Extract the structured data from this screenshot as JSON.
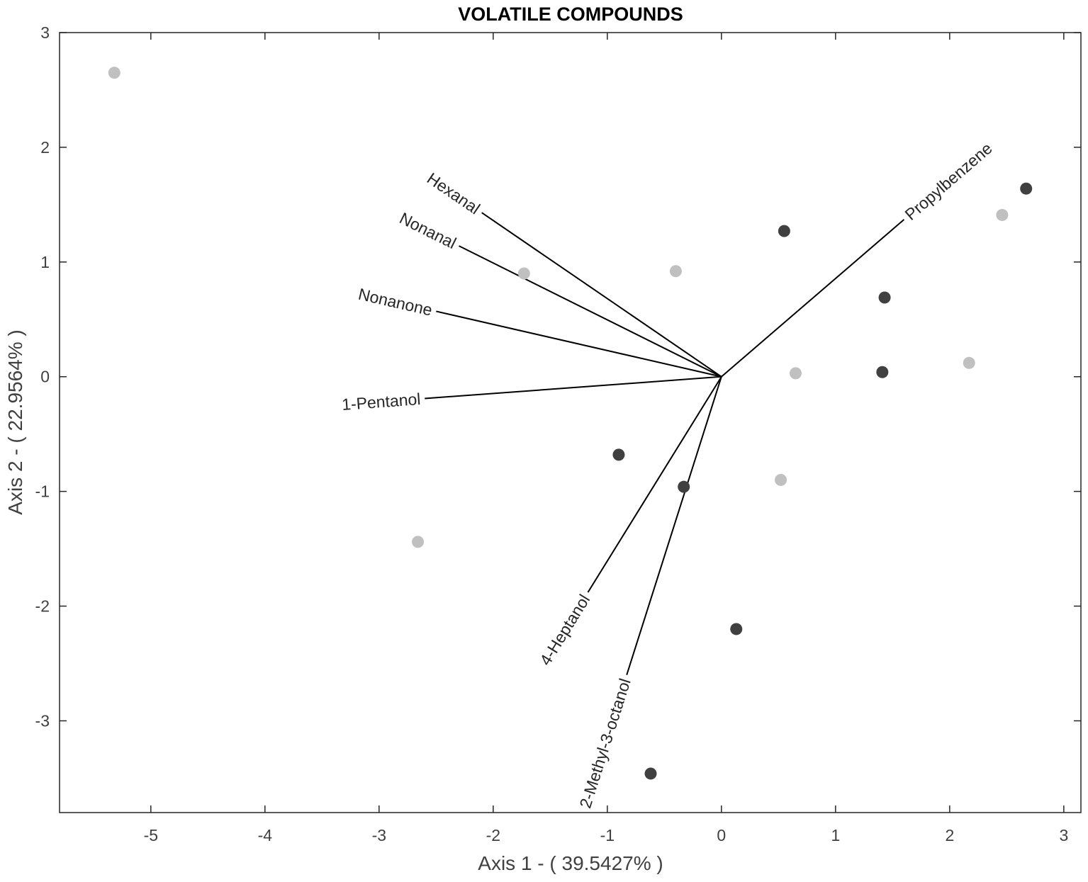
{
  "chart_data": {
    "type": "scatter",
    "title": "VOLATILE COMPOUNDS",
    "xlabel": "Axis 1 - ( 39.5427% )",
    "ylabel": "Axis 2 - ( 22.9564% )",
    "xlim": [
      -5.8,
      3.15
    ],
    "ylim": [
      -3.8,
      3
    ],
    "xticks": [
      -5,
      -4,
      -3,
      -2,
      -1,
      0,
      1,
      2,
      3
    ],
    "yticks": [
      -3,
      -2,
      -1,
      0,
      1,
      2,
      3
    ],
    "grid": false,
    "colors": {
      "light": "#c0c0c0",
      "dark": "#404040",
      "vector": "#000000",
      "axis": "#262626"
    },
    "series": [
      {
        "color": "light",
        "points": [
          {
            "x": -5.32,
            "y": 2.65
          },
          {
            "x": -1.73,
            "y": 0.9
          },
          {
            "x": -0.4,
            "y": 0.92
          },
          {
            "x": 0.65,
            "y": 0.03
          },
          {
            "x": 0.52,
            "y": -0.9
          },
          {
            "x": -2.66,
            "y": -1.44
          },
          {
            "x": 2.17,
            "y": 0.12
          },
          {
            "x": 2.46,
            "y": 1.41
          }
        ]
      },
      {
        "color": "dark",
        "points": [
          {
            "x": 0.55,
            "y": 1.27
          },
          {
            "x": 1.43,
            "y": 0.69
          },
          {
            "x": 1.41,
            "y": 0.04
          },
          {
            "x": 2.67,
            "y": 1.64
          },
          {
            "x": -0.9,
            "y": -0.68
          },
          {
            "x": -0.33,
            "y": -0.96
          },
          {
            "x": 0.13,
            "y": -2.2
          },
          {
            "x": -0.62,
            "y": -3.46
          }
        ]
      }
    ],
    "vectors": [
      {
        "label": "Hexanal",
        "x": -2.1,
        "y": 1.43
      },
      {
        "label": "Nonanal",
        "x": -2.3,
        "y": 1.14
      },
      {
        "label": "Nonanone",
        "x": -2.5,
        "y": 0.57
      },
      {
        "label": "1-Pentanol",
        "x": -2.6,
        "y": -0.19
      },
      {
        "label": "Propylbenzene",
        "x": 1.6,
        "y": 1.37
      },
      {
        "label": "4-Heptanol",
        "x": -1.17,
        "y": -1.88
      },
      {
        "label": "2-Methyl-3-octanol",
        "x": -0.83,
        "y": -2.6
      }
    ]
  }
}
